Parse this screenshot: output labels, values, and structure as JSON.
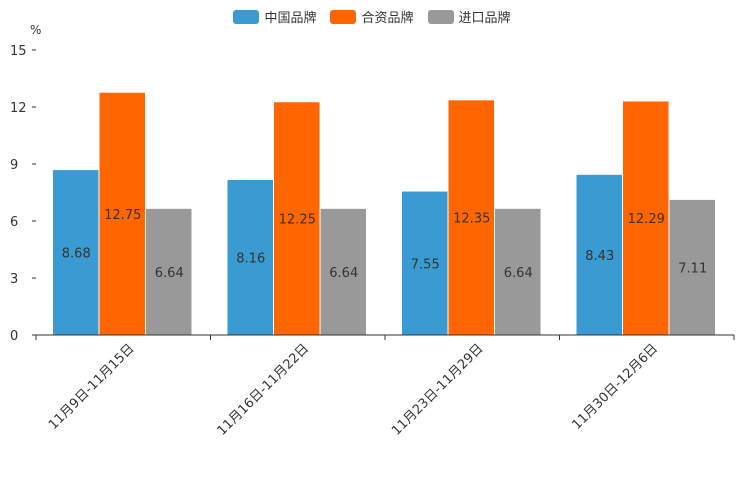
{
  "chart_data": {
    "type": "bar",
    "unit": "%",
    "categories": [
      "11月9日-11月15日",
      "11月16日-11月22日",
      "11月23日-11月29日",
      "11月30日-12月6日"
    ],
    "series": [
      {
        "name": "中国品牌",
        "color": "#3a9bd2",
        "values": [
          8.68,
          8.16,
          7.55,
          8.43
        ]
      },
      {
        "name": "合资品牌",
        "color": "#ff6600",
        "values": [
          12.75,
          12.25,
          12.35,
          12.29
        ]
      },
      {
        "name": "进口品牌",
        "color": "#999999",
        "values": [
          6.64,
          6.64,
          6.64,
          7.11
        ]
      }
    ],
    "ylim": [
      0,
      15
    ],
    "yticks": [
      0,
      3,
      6,
      9,
      12,
      15
    ],
    "grid": false,
    "legend_position": "top-center"
  }
}
